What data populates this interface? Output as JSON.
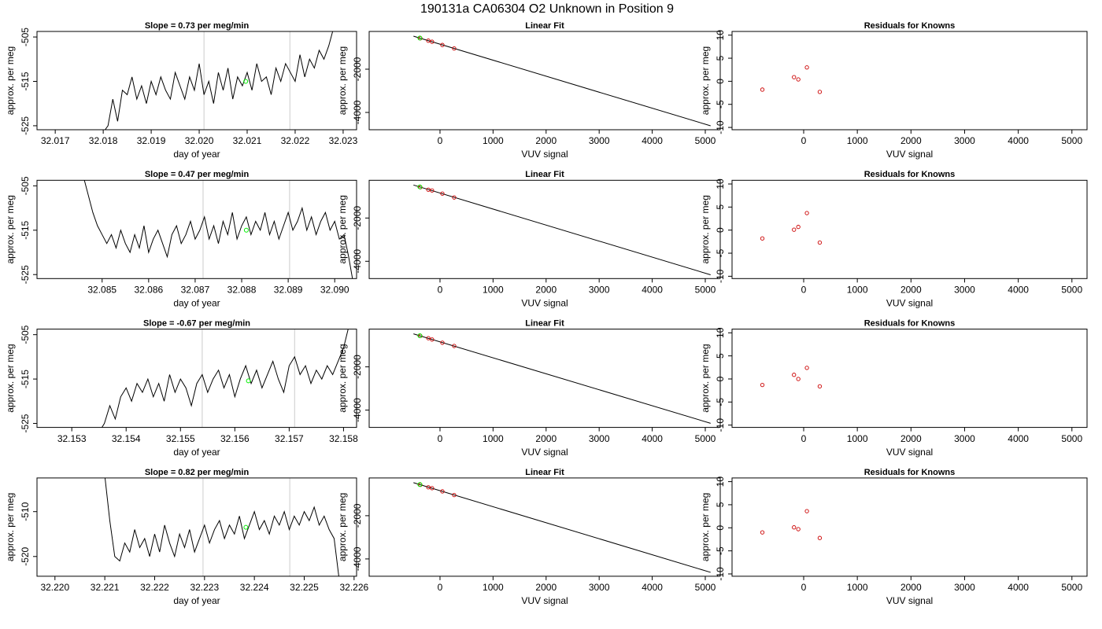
{
  "title": "190131a     CA06304   O2 Unknown in Position  9",
  "chart_data": [
    {
      "type": "line",
      "title": "Slope =  0.73  per meg/min",
      "xlabel": "day of year",
      "ylabel": "approx. per meg",
      "color": "#000000",
      "x": [
        32.018,
        32.0181,
        32.0182,
        32.0183,
        32.0184,
        32.0185,
        32.0186,
        32.0187,
        32.0188,
        32.0189,
        32.019,
        32.0191,
        32.0192,
        32.0193,
        32.0194,
        32.0195,
        32.0196,
        32.0197,
        32.0198,
        32.0199,
        32.02,
        32.0201,
        32.0202,
        32.0203,
        32.0204,
        32.0205,
        32.0206,
        32.0207,
        32.0208,
        32.0209,
        32.021,
        32.0211,
        32.0212,
        32.0213,
        32.0214,
        32.0215,
        32.0216,
        32.0217,
        32.0218,
        32.0219,
        32.022,
        32.0221,
        32.0222,
        32.0223,
        32.0224,
        32.0225,
        32.0226,
        32.0227,
        32.0228
      ],
      "values": [
        -526.5,
        -525,
        -519,
        -524,
        -517,
        -518,
        -514,
        -519,
        -516,
        -520,
        -515,
        -518,
        -514,
        -517,
        -519,
        -513,
        -516,
        -519,
        -514,
        -517,
        -511,
        -518,
        -515,
        -520,
        -513,
        -517,
        -512,
        -519,
        -514,
        -516,
        -513,
        -517,
        -511,
        -515,
        -514,
        -518,
        -512,
        -515,
        -511,
        -513,
        -515,
        -509,
        -514,
        -510,
        -512,
        -508,
        -510,
        -507,
        -503
      ],
      "xlim": [
        32.01662,
        32.02328
      ],
      "ylim": [
        -525.9,
        -503.75
      ],
      "xticks": [
        32.017,
        32.018,
        32.019,
        {
          "value": 32.02,
          "label": "32.020"
        },
        32.021,
        32.022,
        32.023
      ],
      "yticks": [
        -525,
        -515,
        -505
      ],
      "vlines": [
        32.0201,
        32.02189
      ],
      "vline_color": "#cccccc",
      "highlight": {
        "x": 32.02097,
        "y": -515
      },
      "highlight_color": "#00ee00"
    },
    {
      "type": "scatter",
      "title": "Linear Fit",
      "xlabel": "VUV signal",
      "ylabel": "approx. per meg",
      "color": "#cc0000",
      "x": [
        -370,
        -220,
        -150,
        45,
        267
      ],
      "values": [
        -570,
        -680,
        -730,
        -880,
        -1040
      ],
      "fit": {
        "x": [
          -500,
          5100
        ],
        "y": [
          -473,
          -4618
        ]
      },
      "fit_color": "#000000",
      "highlight": {
        "x": -380,
        "y": -560
      },
      "highlight_color": "#00ee00",
      "xlim": [
        -1335,
        5282
      ],
      "ylim": [
        -4800,
        -255
      ],
      "xticks": [
        0,
        1000,
        2000,
        3000,
        4000,
        5000
      ],
      "yticks": [
        -4000,
        -2000
      ]
    },
    {
      "type": "scatter",
      "title": "Residuals for Knowns",
      "xlabel": "VUV signal",
      "ylabel": "approx. per meg",
      "color": "#cc0000",
      "x": [
        -770,
        -180,
        -100,
        60,
        300
      ],
      "values": [
        -1.8,
        0.9,
        0.4,
        3.0,
        -2.3
      ],
      "xlim": [
        -1335,
        5282
      ],
      "ylim": [
        -10.5,
        10.8
      ],
      "xticks": [
        0,
        1000,
        2000,
        3000,
        4000,
        5000
      ],
      "yticks": [
        -10,
        -5,
        0,
        5,
        10
      ]
    },
    {
      "type": "line",
      "title": "Slope =  0.47  per meg/min",
      "xlabel": "day of year",
      "ylabel": "approx. per meg",
      "color": "#000000",
      "x": [
        32.0846,
        32.0847,
        32.0848,
        32.0849,
        32.085,
        32.0851,
        32.0852,
        32.0853,
        32.0854,
        32.0855,
        32.0856,
        32.0857,
        32.0858,
        32.0859,
        32.086,
        32.0861,
        32.0862,
        32.0863,
        32.0864,
        32.0865,
        32.0866,
        32.0867,
        32.0868,
        32.0869,
        32.087,
        32.0871,
        32.0872,
        32.0873,
        32.0874,
        32.0875,
        32.0876,
        32.0877,
        32.0878,
        32.0879,
        32.088,
        32.0881,
        32.0882,
        32.0883,
        32.0884,
        32.0885,
        32.0886,
        32.0887,
        32.0888,
        32.0889,
        32.089,
        32.0891,
        32.0892,
        32.0893,
        32.0894,
        32.0895,
        32.0896,
        32.0897,
        32.0898,
        32.0899,
        32.09,
        32.0901,
        32.0902,
        32.0903,
        32.0904
      ],
      "values": [
        -503,
        -507,
        -511,
        -514,
        -516,
        -518,
        -516,
        -519,
        -515,
        -518,
        -520,
        -516,
        -519,
        -514,
        -520,
        -517,
        -515,
        -518,
        -521,
        -516,
        -514,
        -518,
        -516,
        -513,
        -517,
        -515,
        -512,
        -517,
        -514,
        -518,
        -513,
        -516,
        -511,
        -517,
        -514,
        -512,
        -516,
        -513,
        -515,
        -511,
        -516,
        -513,
        -517,
        -514,
        -511,
        -515,
        -513,
        -510,
        -515,
        -512,
        -516,
        -513,
        -511,
        -515,
        -513,
        -517,
        -516,
        -521,
        -527
      ],
      "xlim": [
        32.0836,
        32.09047
      ],
      "ylim": [
        -525.9,
        -503.75
      ],
      "xticks": [
        32.085,
        32.086,
        32.087,
        32.088,
        32.089,
        {
          "value": 32.09,
          "label": "32.090"
        }
      ],
      "yticks": [
        -525,
        -515,
        -505
      ],
      "vlines": [
        32.08717,
        32.08903
      ],
      "vline_color": "#cccccc",
      "highlight": {
        "x": 32.0881,
        "y": -515
      },
      "highlight_color": "#00ee00"
    },
    {
      "type": "scatter",
      "title": "Linear Fit",
      "xlabel": "VUV signal",
      "ylabel": "approx. per meg",
      "color": "#cc0000",
      "x": [
        -370,
        -220,
        -150,
        45,
        267
      ],
      "values": [
        -575,
        -690,
        -725,
        -870,
        -1050
      ],
      "fit": {
        "x": [
          -500,
          5100
        ],
        "y": [
          -473,
          -4625
        ]
      },
      "fit_color": "#000000",
      "highlight": {
        "x": -380,
        "y": -560
      },
      "highlight_color": "#00ee00",
      "xlim": [
        -1335,
        5282
      ],
      "ylim": [
        -4800,
        -255
      ],
      "xticks": [
        0,
        1000,
        2000,
        3000,
        4000,
        5000
      ],
      "yticks": [
        -4000,
        -2000
      ]
    },
    {
      "type": "scatter",
      "title": "Residuals for Knowns",
      "xlabel": "VUV signal",
      "ylabel": "approx. per meg",
      "color": "#cc0000",
      "x": [
        -770,
        -180,
        -100,
        60,
        300
      ],
      "values": [
        -1.8,
        0.1,
        0.7,
        3.7,
        -2.7
      ],
      "xlim": [
        -1335,
        5282
      ],
      "ylim": [
        -10.5,
        10.8
      ],
      "xticks": [
        0,
        1000,
        2000,
        3000,
        4000,
        5000
      ],
      "yticks": [
        -10,
        -5,
        0,
        5,
        10
      ]
    },
    {
      "type": "line",
      "title": "Slope =  -0.67  per meg/min",
      "xlabel": "day of year",
      "ylabel": "approx. per meg",
      "color": "#000000",
      "x": [
        32.1535,
        32.1536,
        32.1537,
        32.1538,
        32.1539,
        32.154,
        32.1541,
        32.1542,
        32.1543,
        32.1544,
        32.1545,
        32.1546,
        32.1547,
        32.1548,
        32.1549,
        32.155,
        32.1551,
        32.1552,
        32.1553,
        32.1554,
        32.1555,
        32.1556,
        32.1557,
        32.1558,
        32.1559,
        32.156,
        32.1561,
        32.1562,
        32.1563,
        32.1564,
        32.1565,
        32.1566,
        32.1567,
        32.1568,
        32.1569,
        32.157,
        32.1571,
        32.1572,
        32.1573,
        32.1574,
        32.1575,
        32.1576,
        32.1577,
        32.1578,
        32.1579,
        32.158,
        32.1581
      ],
      "values": [
        -527,
        -525,
        -521,
        -524,
        -519,
        -517,
        -520,
        -516,
        -518,
        -515,
        -519,
        -516,
        -520,
        -514,
        -518,
        -515,
        -517,
        -521,
        -516,
        -514,
        -518,
        -515,
        -513,
        -517,
        -514,
        -519,
        -515,
        -512,
        -516,
        -513,
        -517,
        -514,
        -511,
        -515,
        -518,
        -512,
        -510,
        -514,
        -512,
        -516,
        -513,
        -515,
        -512,
        -514,
        -511,
        -508,
        -503
      ],
      "xlim": [
        32.15236,
        32.15824
      ],
      "ylim": [
        -525.9,
        -503.75
      ],
      "xticks": [
        32.153,
        32.154,
        32.155,
        32.156,
        32.157,
        32.158
      ],
      "yticks": [
        -525,
        -515,
        -505
      ],
      "vlines": [
        32.1554,
        32.1571
      ],
      "vline_color": "#cccccc",
      "highlight": {
        "x": 32.15625,
        "y": -515.4
      },
      "highlight_color": "#00ee00"
    },
    {
      "type": "scatter",
      "title": "Linear Fit",
      "xlabel": "VUV signal",
      "ylabel": "approx. per meg",
      "color": "#cc0000",
      "x": [
        -370,
        -220,
        -150,
        45,
        267
      ],
      "values": [
        -568,
        -675,
        -735,
        -885,
        -1035
      ],
      "fit": {
        "x": [
          -500,
          5100
        ],
        "y": [
          -473,
          -4610
        ]
      },
      "fit_color": "#000000",
      "highlight": {
        "x": -380,
        "y": -560
      },
      "highlight_color": "#00ee00",
      "xlim": [
        -1335,
        5282
      ],
      "ylim": [
        -4800,
        -255
      ],
      "xticks": [
        0,
        1000,
        2000,
        3000,
        4000,
        5000
      ],
      "yticks": [
        -4000,
        -2000
      ]
    },
    {
      "type": "scatter",
      "title": "Residuals for Knowns",
      "xlabel": "VUV signal",
      "ylabel": "approx. per meg",
      "color": "#cc0000",
      "x": [
        -770,
        -180,
        -100,
        60,
        300
      ],
      "values": [
        -1.3,
        0.9,
        0.0,
        2.4,
        -1.6
      ],
      "xlim": [
        -1335,
        5282
      ],
      "ylim": [
        -10.5,
        10.8
      ],
      "xticks": [
        0,
        1000,
        2000,
        3000,
        4000,
        5000
      ],
      "yticks": [
        -10,
        -5,
        0,
        5,
        10
      ]
    },
    {
      "type": "line",
      "title": "Slope =  0.82  per meg/min",
      "xlabel": "day of year",
      "ylabel": "approx. per meg",
      "color": "#000000",
      "x": [
        32.221,
        32.2211,
        32.2212,
        32.2213,
        32.2214,
        32.2215,
        32.2216,
        32.2217,
        32.2218,
        32.2219,
        32.222,
        32.2221,
        32.2222,
        32.2223,
        32.2224,
        32.2225,
        32.2226,
        32.2227,
        32.2228,
        32.2229,
        32.223,
        32.2231,
        32.2232,
        32.2233,
        32.2234,
        32.2235,
        32.2236,
        32.2237,
        32.2238,
        32.2239,
        32.224,
        32.2241,
        32.2242,
        32.2243,
        32.2244,
        32.2245,
        32.2246,
        32.2247,
        32.2248,
        32.2249,
        32.225,
        32.2251,
        32.2252,
        32.2253,
        32.2254,
        32.2255,
        32.2256,
        32.2257
      ],
      "values": [
        -502,
        -512,
        -520,
        -521,
        -517,
        -519,
        -514,
        -518,
        -516,
        -520,
        -515,
        -519,
        -513,
        -517,
        -520,
        -515,
        -518,
        -514,
        -519,
        -516,
        -513,
        -517,
        -514,
        -512,
        -516,
        -513,
        -515,
        -511,
        -516,
        -513,
        -510,
        -514,
        -512,
        -515,
        -511,
        -513,
        -510,
        -514,
        -511,
        -513,
        -510,
        -512,
        -509,
        -513,
        -511,
        -514,
        -516,
        -525
      ],
      "xlim": [
        32.21964,
        32.22605
      ],
      "ylim": [
        -524.4,
        -502.5
      ],
      "xticks": [
        {
          "value": 32.22,
          "label": "32.220"
        },
        32.221,
        32.222,
        32.223,
        32.224,
        32.225,
        32.226
      ],
      "yticks": [
        -520,
        -510
      ],
      "vlines": [
        32.22297,
        32.22471
      ],
      "vline_color": "#cccccc",
      "highlight": {
        "x": 32.22383,
        "y": -513.5
      },
      "highlight_color": "#00ee00"
    },
    {
      "type": "scatter",
      "title": "Linear Fit",
      "xlabel": "VUV signal",
      "ylabel": "approx. per meg",
      "color": "#cc0000",
      "x": [
        -370,
        -220,
        -150,
        45,
        267
      ],
      "values": [
        -572,
        -685,
        -728,
        -875,
        -1045
      ],
      "fit": {
        "x": [
          -500,
          5100
        ],
        "y": [
          -473,
          -4620
        ]
      },
      "fit_color": "#000000",
      "highlight": {
        "x": -380,
        "y": -560
      },
      "highlight_color": "#00ee00",
      "xlim": [
        -1335,
        5282
      ],
      "ylim": [
        -4800,
        -255
      ],
      "xticks": [
        0,
        1000,
        2000,
        3000,
        4000,
        5000
      ],
      "yticks": [
        -4000,
        -2000
      ]
    },
    {
      "type": "scatter",
      "title": "Residuals for Knowns",
      "xlabel": "VUV signal",
      "ylabel": "approx. per meg",
      "color": "#cc0000",
      "x": [
        -770,
        -180,
        -100,
        60,
        300
      ],
      "values": [
        -1.0,
        0.1,
        -0.3,
        3.6,
        -2.2
      ],
      "xlim": [
        -1335,
        5282
      ],
      "ylim": [
        -10.5,
        10.8
      ],
      "xticks": [
        0,
        1000,
        2000,
        3000,
        4000,
        5000
      ],
      "yticks": [
        -10,
        -5,
        0,
        5,
        10
      ]
    }
  ]
}
